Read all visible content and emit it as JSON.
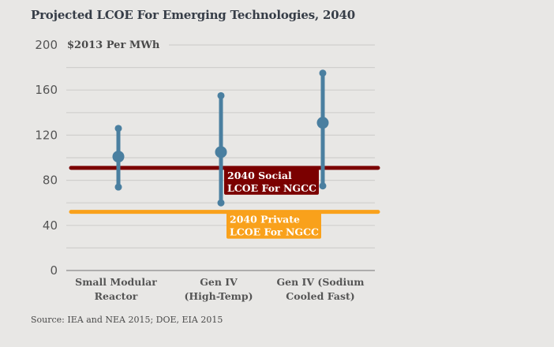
{
  "chart_data": {
    "type": "range-dot",
    "title": "Projected LCOE For Emerging Technologies, 2040",
    "ylabel": "$2013 Per MWh",
    "xlabel": "",
    "ylim": [
      0,
      200
    ],
    "yticks": [
      0,
      40,
      80,
      120,
      160,
      200
    ],
    "minor_gridlines": [
      20,
      60,
      100,
      140,
      180
    ],
    "grid": true,
    "categories": [
      {
        "lines": [
          "Small Modular",
          "Reactor"
        ]
      },
      {
        "lines": [
          "Gen IV",
          "(High-Temp)"
        ]
      },
      {
        "lines": [
          "Gen IV (Sodium",
          "Cooled Fast)"
        ]
      }
    ],
    "series": [
      {
        "name": "Small Modular Reactor",
        "low": 74,
        "mid": 101,
        "high": 126
      },
      {
        "name": "Gen IV (High-Temp)",
        "low": 60,
        "mid": 105,
        "high": 155
      },
      {
        "name": "Gen IV (Sodium Cooled Fast)",
        "low": 75,
        "mid": 131,
        "high": 175
      }
    ],
    "reference_lines": [
      {
        "name": "2040 Social LCOE For NGCC",
        "label_lines": [
          "2040 Social",
          "LCOE For NGCC"
        ],
        "value": 91,
        "color": "#7b0000"
      },
      {
        "name": "2040 Private LCOE For NGCC",
        "label_lines": [
          "2040 Private",
          "LCOE For NGCC"
        ],
        "value": 52,
        "color": "#f9a11b"
      }
    ],
    "series_color": "#4a7fa0",
    "source": "Source: IEA and NEA 2015; DOE, EIA 2015"
  }
}
